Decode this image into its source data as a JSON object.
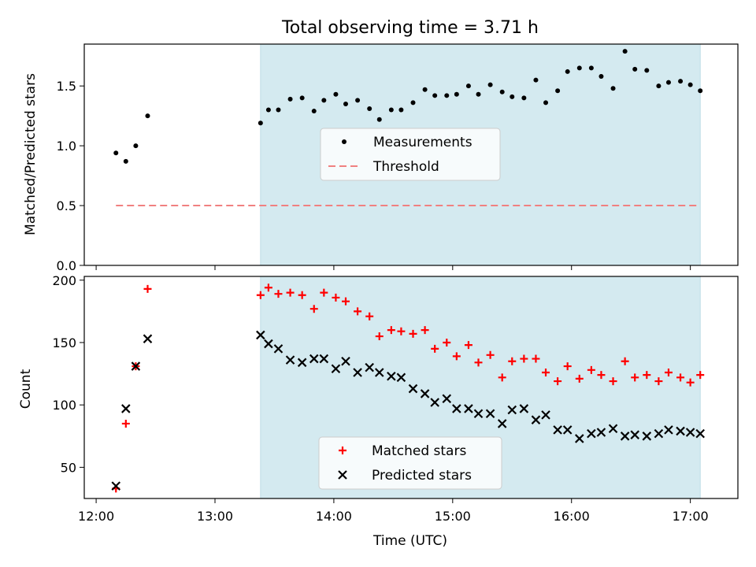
{
  "chart_data": [
    {
      "type": "scatter",
      "title": "Total observing time = 3.71 h",
      "xlabel": "",
      "ylabel": "Matched/Predicted stars",
      "ylim": [
        0,
        1.85
      ],
      "yticks": [
        0.0,
        0.5,
        1.0,
        1.5
      ],
      "ytick_labels": [
        "0.0",
        "0.5",
        "1.0",
        "1.5"
      ],
      "shaded_span": {
        "x_start": "13:23",
        "x_end": "17:05",
        "color": "#d4eaf0"
      },
      "legend": {
        "location": "center",
        "entries": [
          "Measurements",
          "Threshold"
        ]
      },
      "series": [
        {
          "name": "Measurements",
          "marker": "dot",
          "color": "#000000",
          "x": [
            "12:10",
            "12:15",
            "12:20",
            "12:26",
            "13:23",
            "13:27",
            "13:32",
            "13:38",
            "13:44",
            "13:50",
            "13:55",
            "14:01",
            "14:06",
            "14:12",
            "14:18",
            "14:23",
            "14:29",
            "14:34",
            "14:40",
            "14:46",
            "14:51",
            "14:57",
            "15:02",
            "15:08",
            "15:13",
            "15:19",
            "15:25",
            "15:30",
            "15:36",
            "15:42",
            "15:47",
            "15:53",
            "15:58",
            "16:04",
            "16:10",
            "16:15",
            "16:21",
            "16:27",
            "16:32",
            "16:38",
            "16:44",
            "16:49",
            "16:55",
            "17:00",
            "17:05"
          ],
          "y": [
            0.94,
            0.87,
            1.0,
            1.25,
            1.19,
            1.3,
            1.3,
            1.39,
            1.4,
            1.29,
            1.38,
            1.43,
            1.35,
            1.38,
            1.31,
            1.22,
            1.3,
            1.3,
            1.36,
            1.47,
            1.42,
            1.42,
            1.43,
            1.5,
            1.43,
            1.51,
            1.45,
            1.41,
            1.4,
            1.55,
            1.36,
            1.46,
            1.62,
            1.65,
            1.65,
            1.58,
            1.48,
            1.79,
            1.64,
            1.63,
            1.5,
            1.53,
            1.54,
            1.51,
            1.46
          ]
        },
        {
          "name": "Threshold",
          "marker": "dashed-line",
          "color": "#f08080",
          "x": [
            "12:10",
            "17:05"
          ],
          "y": [
            0.5,
            0.5
          ]
        }
      ]
    },
    {
      "type": "scatter",
      "title": "",
      "xlabel": "Time (UTC)",
      "ylabel": "Count",
      "ylim": [
        25,
        203
      ],
      "yticks": [
        50,
        100,
        150,
        200
      ],
      "ytick_labels": [
        "50",
        "100",
        "150",
        "200"
      ],
      "xticks": [
        "12:00",
        "13:00",
        "14:00",
        "15:00",
        "16:00",
        "17:00"
      ],
      "shaded_span": {
        "x_start": "13:23",
        "x_end": "17:05",
        "color": "#d4eaf0"
      },
      "legend": {
        "location": "lower center",
        "entries": [
          "Matched stars",
          "Predicted stars"
        ]
      },
      "series": [
        {
          "name": "Matched stars",
          "marker": "plus",
          "color": "#ff0000",
          "x": [
            "12:10",
            "12:15",
            "12:20",
            "12:26",
            "13:23",
            "13:27",
            "13:32",
            "13:38",
            "13:44",
            "13:50",
            "13:55",
            "14:01",
            "14:06",
            "14:12",
            "14:18",
            "14:23",
            "14:29",
            "14:34",
            "14:40",
            "14:46",
            "14:51",
            "14:57",
            "15:02",
            "15:08",
            "15:13",
            "15:19",
            "15:25",
            "15:30",
            "15:36",
            "15:42",
            "15:47",
            "15:53",
            "15:58",
            "16:04",
            "16:10",
            "16:15",
            "16:21",
            "16:27",
            "16:32",
            "16:38",
            "16:44",
            "16:49",
            "16:55",
            "17:00",
            "17:05"
          ],
          "y": [
            33,
            85,
            131,
            193,
            188,
            194,
            189,
            190,
            188,
            177,
            190,
            186,
            183,
            175,
            171,
            155,
            160,
            159,
            157,
            160,
            145,
            150,
            139,
            148,
            134,
            140,
            122,
            135,
            137,
            137,
            126,
            119,
            131,
            121,
            128,
            124,
            119,
            135,
            122,
            124,
            119,
            126,
            122,
            118,
            124
          ]
        },
        {
          "name": "Predicted stars",
          "marker": "x",
          "color": "#000000",
          "x": [
            "12:10",
            "12:15",
            "12:20",
            "12:26",
            "13:23",
            "13:27",
            "13:32",
            "13:38",
            "13:44",
            "13:50",
            "13:55",
            "14:01",
            "14:06",
            "14:12",
            "14:18",
            "14:23",
            "14:29",
            "14:34",
            "14:40",
            "14:46",
            "14:51",
            "14:57",
            "15:02",
            "15:08",
            "15:13",
            "15:19",
            "15:25",
            "15:30",
            "15:36",
            "15:42",
            "15:47",
            "15:53",
            "15:58",
            "16:04",
            "16:10",
            "16:15",
            "16:21",
            "16:27",
            "16:32",
            "16:38",
            "16:44",
            "16:49",
            "16:55",
            "17:00",
            "17:05"
          ],
          "y": [
            35,
            97,
            131,
            153,
            156,
            149,
            145,
            136,
            134,
            137,
            137,
            129,
            135,
            126,
            130,
            126,
            123,
            122,
            113,
            109,
            102,
            105,
            97,
            97,
            93,
            93,
            85,
            96,
            97,
            88,
            92,
            80,
            80,
            73,
            77,
            78,
            81,
            75,
            76,
            75,
            77,
            80,
            79,
            78,
            77
          ]
        }
      ]
    }
  ]
}
